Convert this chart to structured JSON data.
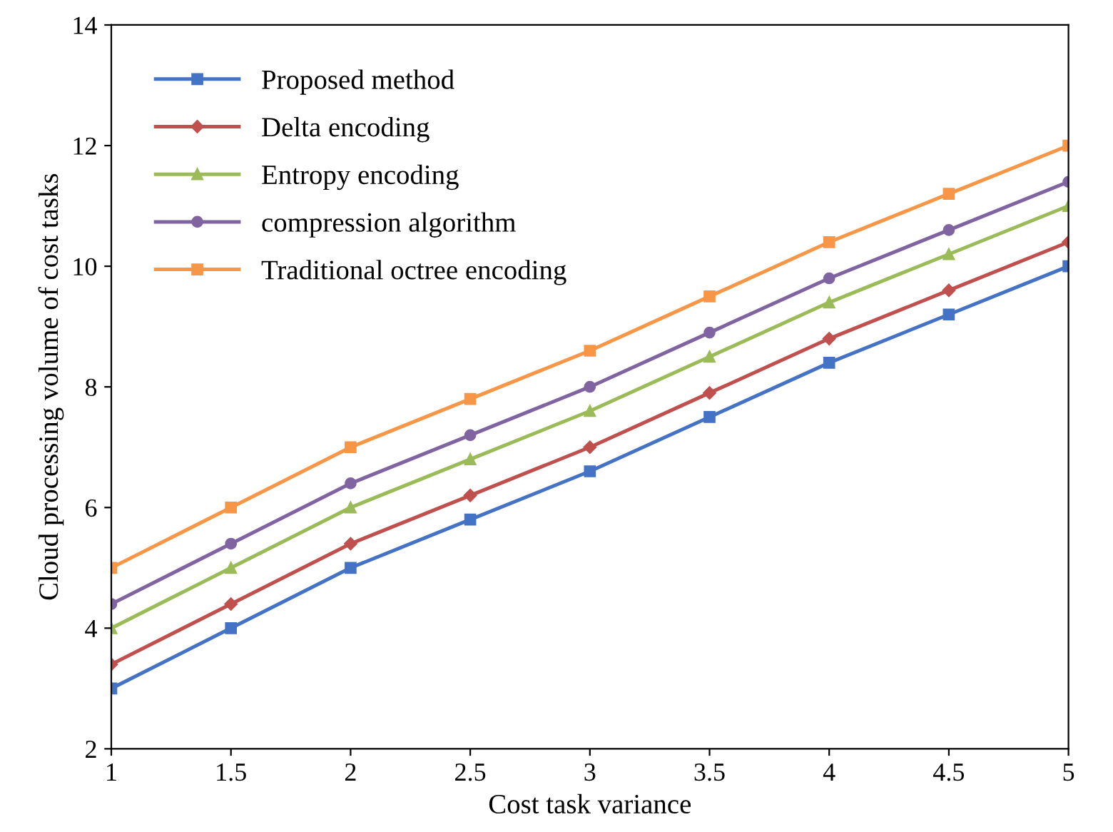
{
  "chart_data": {
    "type": "line",
    "xlabel": "Cost task variance",
    "ylabel": "Cloud processing volume of cost tasks",
    "x": [
      1,
      1.5,
      2,
      2.5,
      3,
      3.5,
      4,
      4.5,
      5
    ],
    "series": [
      {
        "name": "Proposed method",
        "color": "#4472c4",
        "marker": "square",
        "values": [
          3,
          4,
          5,
          5.8,
          6.6,
          7.5,
          8.4,
          9.2,
          10
        ]
      },
      {
        "name": "Delta encoding",
        "color": "#c0504d",
        "marker": "diamond",
        "values": [
          3.4,
          4.4,
          5.4,
          6.2,
          7,
          7.9,
          8.8,
          9.6,
          10.4
        ]
      },
      {
        "name": "Entropy encoding",
        "color": "#9bbb59",
        "marker": "triangle",
        "values": [
          4,
          5,
          6,
          6.8,
          7.6,
          8.5,
          9.4,
          10.2,
          11
        ]
      },
      {
        "name": "compression algorithm",
        "color": "#8064a2",
        "marker": "circle",
        "values": [
          4.4,
          5.4,
          6.4,
          7.2,
          8,
          8.9,
          9.8,
          10.6,
          11.4
        ]
      },
      {
        "name": "Traditional octree encoding",
        "color": "#f79646",
        "marker": "square",
        "values": [
          5,
          6,
          7,
          7.8,
          8.6,
          9.5,
          10.4,
          11.2,
          12
        ]
      }
    ],
    "xlim": [
      1,
      5
    ],
    "xticks": [
      1,
      1.5,
      2,
      2.5,
      3,
      3.5,
      4,
      4.5,
      5
    ],
    "ylim": [
      2,
      14
    ],
    "yticks": [
      2,
      4,
      6,
      8,
      10,
      12,
      14
    ],
    "grid": false,
    "legend": "top left",
    "line_style": "solid"
  }
}
